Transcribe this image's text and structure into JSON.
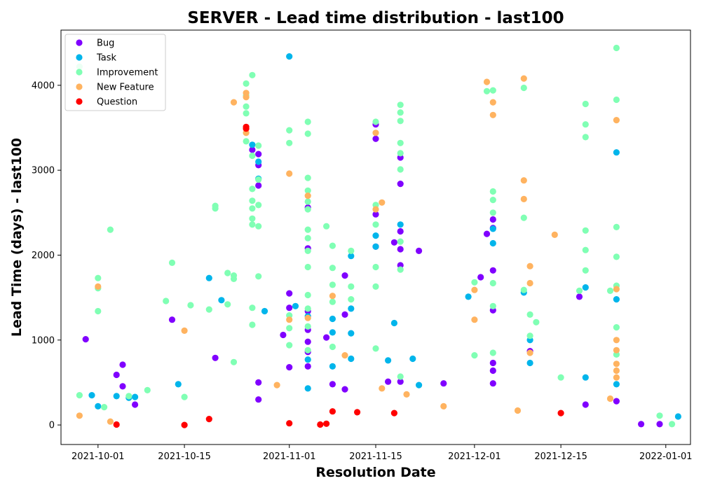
{
  "chart_data": {
    "type": "scatter",
    "title": "SERVER - Lead time distribution - last100",
    "xlabel": "Resolution Date",
    "ylabel": "Lead Time (days) - last100",
    "x_ticks": [
      "2021-10-01",
      "2021-10-15",
      "2021-11-01",
      "2021-11-15",
      "2021-12-01",
      "2021-12-15",
      "2022-01-01"
    ],
    "y_ticks": [
      0,
      1000,
      2000,
      3000,
      4000
    ],
    "xlim": [
      "2021-09-25",
      "2022-01-05"
    ],
    "ylim": [
      -230,
      4650
    ],
    "legend_position": "upper-left",
    "grid": false,
    "series": [
      {
        "name": "Bug",
        "color": "#8000ff",
        "points": [
          [
            "2021-09-29",
            1010
          ],
          [
            "2021-10-04",
            590
          ],
          [
            "2021-10-05",
            710
          ],
          [
            "2021-10-05",
            455
          ],
          [
            "2021-10-07",
            240
          ],
          [
            "2021-10-13",
            1240
          ],
          [
            "2021-10-20",
            790
          ],
          [
            "2021-10-26",
            3240
          ],
          [
            "2021-10-27",
            3190
          ],
          [
            "2021-10-27",
            3060
          ],
          [
            "2021-10-27",
            2820
          ],
          [
            "2021-10-27",
            500
          ],
          [
            "2021-10-27",
            300
          ],
          [
            "2021-10-31",
            1060
          ],
          [
            "2021-11-01",
            1550
          ],
          [
            "2021-11-01",
            1380
          ],
          [
            "2021-11-01",
            680
          ],
          [
            "2021-11-04",
            2560
          ],
          [
            "2021-11-04",
            2080
          ],
          [
            "2021-11-04",
            1340
          ],
          [
            "2021-11-04",
            1120
          ],
          [
            "2021-11-04",
            980
          ],
          [
            "2021-11-04",
            860
          ],
          [
            "2021-11-04",
            690
          ],
          [
            "2021-11-07",
            1030
          ],
          [
            "2021-11-08",
            480
          ],
          [
            "2021-11-10",
            1760
          ],
          [
            "2021-11-10",
            1300
          ],
          [
            "2021-11-10",
            420
          ],
          [
            "2021-11-15",
            3370
          ],
          [
            "2021-11-15",
            3540
          ],
          [
            "2021-11-15",
            2480
          ],
          [
            "2021-11-15",
            2100
          ],
          [
            "2021-11-17",
            510
          ],
          [
            "2021-11-18",
            2150
          ],
          [
            "2021-11-19",
            3150
          ],
          [
            "2021-11-19",
            2840
          ],
          [
            "2021-11-19",
            2280
          ],
          [
            "2021-11-19",
            2070
          ],
          [
            "2021-11-19",
            1880
          ],
          [
            "2021-11-19",
            510
          ],
          [
            "2021-11-22",
            2050
          ],
          [
            "2021-11-26",
            490
          ],
          [
            "2021-12-02",
            1740
          ],
          [
            "2021-12-03",
            2250
          ],
          [
            "2021-12-04",
            2420
          ],
          [
            "2021-12-04",
            2320
          ],
          [
            "2021-12-04",
            1820
          ],
          [
            "2021-12-04",
            1350
          ],
          [
            "2021-12-04",
            730
          ],
          [
            "2021-12-04",
            640
          ],
          [
            "2021-12-04",
            490
          ],
          [
            "2021-12-10",
            870
          ],
          [
            "2021-12-18",
            1510
          ],
          [
            "2021-12-19",
            240
          ],
          [
            "2021-12-24",
            280
          ],
          [
            "2021-12-28",
            10
          ],
          [
            "2021-12-31",
            10
          ]
        ]
      },
      {
        "name": "Task",
        "color": "#00b5eb",
        "points": [
          [
            "2021-09-30",
            350
          ],
          [
            "2021-10-01",
            220
          ],
          [
            "2021-10-04",
            340
          ],
          [
            "2021-10-06",
            320
          ],
          [
            "2021-10-07",
            330
          ],
          [
            "2021-10-14",
            480
          ],
          [
            "2021-10-19",
            1730
          ],
          [
            "2021-10-21",
            1470
          ],
          [
            "2021-10-26",
            3300
          ],
          [
            "2021-10-27",
            2900
          ],
          [
            "2021-10-27",
            3100
          ],
          [
            "2021-10-28",
            1340
          ],
          [
            "2021-11-01",
            4340
          ],
          [
            "2021-11-02",
            1400
          ],
          [
            "2021-11-04",
            1280
          ],
          [
            "2021-11-04",
            770
          ],
          [
            "2021-11-04",
            430
          ],
          [
            "2021-11-08",
            1250
          ],
          [
            "2021-11-08",
            1090
          ],
          [
            "2021-11-08",
            690
          ],
          [
            "2021-11-11",
            1990
          ],
          [
            "2021-11-11",
            1370
          ],
          [
            "2021-11-11",
            1080
          ],
          [
            "2021-11-11",
            780
          ],
          [
            "2021-11-15",
            2230
          ],
          [
            "2021-11-15",
            2100
          ],
          [
            "2021-11-17",
            760
          ],
          [
            "2021-11-18",
            1200
          ],
          [
            "2021-11-19",
            2360
          ],
          [
            "2021-11-21",
            780
          ],
          [
            "2021-11-22",
            470
          ],
          [
            "2021-11-30",
            1510
          ],
          [
            "2021-12-04",
            2310
          ],
          [
            "2021-12-04",
            2140
          ],
          [
            "2021-12-09",
            1560
          ],
          [
            "2021-12-10",
            1000
          ],
          [
            "2021-12-10",
            730
          ],
          [
            "2021-12-19",
            1620
          ],
          [
            "2021-12-19",
            560
          ],
          [
            "2021-12-24",
            3210
          ],
          [
            "2021-12-24",
            1480
          ],
          [
            "2021-12-24",
            480
          ],
          [
            "2022-01-03",
            100
          ]
        ]
      },
      {
        "name": "Improvement",
        "color": "#80ffb4",
        "points": [
          [
            "2021-09-28",
            4220
          ],
          [
            "2021-09-28",
            350
          ],
          [
            "2021-10-01",
            1730
          ],
          [
            "2021-10-01",
            1610
          ],
          [
            "2021-10-01",
            1340
          ],
          [
            "2021-10-02",
            210
          ],
          [
            "2021-10-03",
            2300
          ],
          [
            "2021-10-06",
            340
          ],
          [
            "2021-10-09",
            410
          ],
          [
            "2021-10-12",
            1460
          ],
          [
            "2021-10-13",
            1910
          ],
          [
            "2021-10-15",
            330
          ],
          [
            "2021-10-16",
            1410
          ],
          [
            "2021-10-19",
            1360
          ],
          [
            "2021-10-20",
            2580
          ],
          [
            "2021-10-20",
            2550
          ],
          [
            "2021-10-22",
            1790
          ],
          [
            "2021-10-22",
            1420
          ],
          [
            "2021-10-23",
            1760
          ],
          [
            "2021-10-23",
            1720
          ],
          [
            "2021-10-23",
            740
          ],
          [
            "2021-10-25",
            4020
          ],
          [
            "2021-10-25",
            3880
          ],
          [
            "2021-10-25",
            3750
          ],
          [
            "2021-10-25",
            3670
          ],
          [
            "2021-10-25",
            3340
          ],
          [
            "2021-10-26",
            4120
          ],
          [
            "2021-10-26",
            3170
          ],
          [
            "2021-10-26",
            2780
          ],
          [
            "2021-10-26",
            2640
          ],
          [
            "2021-10-26",
            2550
          ],
          [
            "2021-10-26",
            2430
          ],
          [
            "2021-10-26",
            2360
          ],
          [
            "2021-10-26",
            1380
          ],
          [
            "2021-10-26",
            1180
          ],
          [
            "2021-10-27",
            3290
          ],
          [
            "2021-10-27",
            2890
          ],
          [
            "2021-10-27",
            2590
          ],
          [
            "2021-10-27",
            2340
          ],
          [
            "2021-10-27",
            1750
          ],
          [
            "2021-11-01",
            3470
          ],
          [
            "2021-11-01",
            3320
          ],
          [
            "2021-11-01",
            1290
          ],
          [
            "2021-11-01",
            1140
          ],
          [
            "2021-11-01",
            940
          ],
          [
            "2021-11-04",
            3570
          ],
          [
            "2021-11-04",
            3430
          ],
          [
            "2021-11-04",
            2910
          ],
          [
            "2021-11-04",
            2760
          ],
          [
            "2021-11-04",
            2630
          ],
          [
            "2021-11-04",
            2540
          ],
          [
            "2021-11-04",
            2300
          ],
          [
            "2021-11-04",
            2200
          ],
          [
            "2021-11-04",
            2050
          ],
          [
            "2021-11-04",
            1860
          ],
          [
            "2021-11-04",
            1530
          ],
          [
            "2021-11-04",
            1370
          ],
          [
            "2021-11-04",
            1160
          ],
          [
            "2021-11-04",
            880
          ],
          [
            "2021-11-07",
            2340
          ],
          [
            "2021-11-08",
            2110
          ],
          [
            "2021-11-08",
            1850
          ],
          [
            "2021-11-08",
            1650
          ],
          [
            "2021-11-08",
            1450
          ],
          [
            "2021-11-08",
            920
          ],
          [
            "2021-11-11",
            2050
          ],
          [
            "2021-11-11",
            1630
          ],
          [
            "2021-11-11",
            1480
          ],
          [
            "2021-11-15",
            3570
          ],
          [
            "2021-11-15",
            2590
          ],
          [
            "2021-11-15",
            2360
          ],
          [
            "2021-11-15",
            1860
          ],
          [
            "2021-11-15",
            1630
          ],
          [
            "2021-11-15",
            900
          ],
          [
            "2021-11-19",
            3770
          ],
          [
            "2021-11-19",
            3680
          ],
          [
            "2021-11-19",
            3580
          ],
          [
            "2021-11-19",
            3320
          ],
          [
            "2021-11-19",
            3200
          ],
          [
            "2021-11-19",
            3010
          ],
          [
            "2021-11-19",
            2160
          ],
          [
            "2021-11-19",
            1830
          ],
          [
            "2021-11-19",
            570
          ],
          [
            "2021-12-01",
            1680
          ],
          [
            "2021-12-01",
            820
          ],
          [
            "2021-12-03",
            3930
          ],
          [
            "2021-12-04",
            3940
          ],
          [
            "2021-12-04",
            2750
          ],
          [
            "2021-12-04",
            2650
          ],
          [
            "2021-12-04",
            2500
          ],
          [
            "2021-12-04",
            1670
          ],
          [
            "2021-12-04",
            1400
          ],
          [
            "2021-12-04",
            850
          ],
          [
            "2021-12-09",
            3970
          ],
          [
            "2021-12-09",
            2440
          ],
          [
            "2021-12-09",
            1590
          ],
          [
            "2021-12-10",
            1300
          ],
          [
            "2021-12-10",
            1050
          ],
          [
            "2021-12-11",
            1210
          ],
          [
            "2021-12-15",
            560
          ],
          [
            "2021-12-18",
            1580
          ],
          [
            "2021-12-19",
            3780
          ],
          [
            "2021-12-19",
            3540
          ],
          [
            "2021-12-19",
            3390
          ],
          [
            "2021-12-19",
            2290
          ],
          [
            "2021-12-19",
            2060
          ],
          [
            "2021-12-19",
            1820
          ],
          [
            "2021-12-23",
            1580
          ],
          [
            "2021-12-24",
            4440
          ],
          [
            "2021-12-24",
            3830
          ],
          [
            "2021-12-24",
            2330
          ],
          [
            "2021-12-24",
            1980
          ],
          [
            "2021-12-24",
            1640
          ],
          [
            "2021-12-24",
            1150
          ],
          [
            "2021-12-24",
            830
          ],
          [
            "2021-12-31",
            110
          ],
          [
            "2022-01-02",
            10
          ]
        ]
      },
      {
        "name": "New Feature",
        "color": "#ffb360",
        "points": [
          [
            "2021-09-28",
            110
          ],
          [
            "2021-10-01",
            1630
          ],
          [
            "2021-10-03",
            40
          ],
          [
            "2021-10-15",
            1110
          ],
          [
            "2021-10-23",
            3800
          ],
          [
            "2021-10-25",
            3910
          ],
          [
            "2021-10-25",
            3860
          ],
          [
            "2021-10-25",
            3440
          ],
          [
            "2021-10-30",
            470
          ],
          [
            "2021-11-01",
            2960
          ],
          [
            "2021-11-01",
            1240
          ],
          [
            "2021-11-04",
            2700
          ],
          [
            "2021-11-04",
            1260
          ],
          [
            "2021-11-08",
            1520
          ],
          [
            "2021-11-10",
            820
          ],
          [
            "2021-11-15",
            3440
          ],
          [
            "2021-11-15",
            2540
          ],
          [
            "2021-11-16",
            2620
          ],
          [
            "2021-11-16",
            430
          ],
          [
            "2021-11-20",
            360
          ],
          [
            "2021-11-26",
            220
          ],
          [
            "2021-12-01",
            1590
          ],
          [
            "2021-12-01",
            1240
          ],
          [
            "2021-12-03",
            4040
          ],
          [
            "2021-12-04",
            3800
          ],
          [
            "2021-12-04",
            3650
          ],
          [
            "2021-12-08",
            170
          ],
          [
            "2021-12-09",
            4080
          ],
          [
            "2021-12-09",
            2880
          ],
          [
            "2021-12-09",
            2660
          ],
          [
            "2021-12-10",
            1870
          ],
          [
            "2021-12-10",
            1670
          ],
          [
            "2021-12-10",
            850
          ],
          [
            "2021-12-14",
            2240
          ],
          [
            "2021-12-23",
            310
          ],
          [
            "2021-12-24",
            3590
          ],
          [
            "2021-12-24",
            1600
          ],
          [
            "2021-12-24",
            1000
          ],
          [
            "2021-12-24",
            880
          ],
          [
            "2021-12-24",
            720
          ],
          [
            "2021-12-24",
            640
          ],
          [
            "2021-12-24",
            560
          ]
        ]
      },
      {
        "name": "Question",
        "color": "#ff0000",
        "points": [
          [
            "2021-10-04",
            5
          ],
          [
            "2021-10-15",
            0
          ],
          [
            "2021-10-19",
            70
          ],
          [
            "2021-10-25",
            3510
          ],
          [
            "2021-10-25",
            3490
          ],
          [
            "2021-11-01",
            20
          ],
          [
            "2021-11-06",
            5
          ],
          [
            "2021-11-07",
            15
          ],
          [
            "2021-11-08",
            160
          ],
          [
            "2021-11-12",
            150
          ],
          [
            "2021-11-18",
            140
          ],
          [
            "2021-12-15",
            140
          ]
        ]
      }
    ]
  }
}
